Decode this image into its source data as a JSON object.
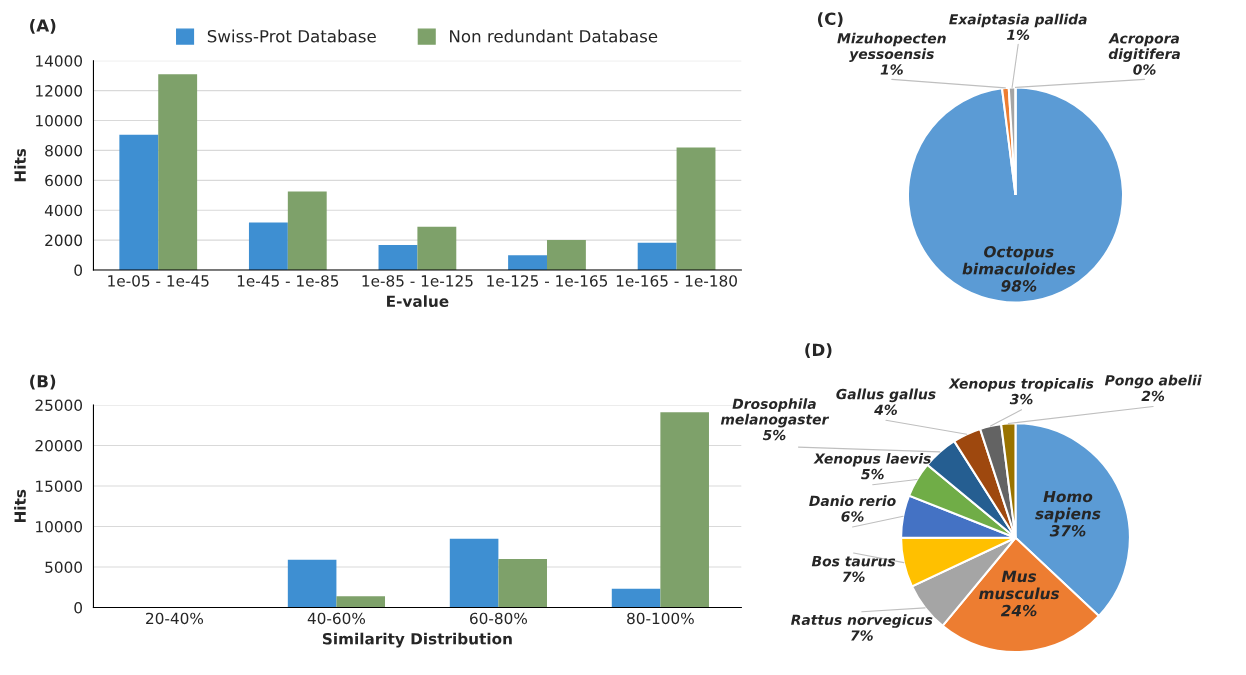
{
  "chart_data": [
    {
      "type": "bar",
      "title": "(A)",
      "xlabel": "E-value",
      "ylabel": "Hits",
      "categories": [
        "1e-05 - 1e-45",
        "1e-45 - 1e-85",
        "1e-85 - 1e-125",
        "1e-125 - 1e-165",
        "1e-165 - 1e-180"
      ],
      "series": [
        {
          "name": "Swiss-Prot Database",
          "color": "#3e8fd2",
          "values": [
            9050,
            3180,
            1680,
            980,
            1830
          ]
        },
        {
          "name": "Non redundant Database",
          "color": "#7ea16a",
          "values": [
            13100,
            5250,
            2900,
            2000,
            8200
          ]
        }
      ],
      "ylim": [
        0,
        14000
      ],
      "yticks": [
        0,
        2000,
        4000,
        6000,
        8000,
        10000,
        12000,
        14000
      ],
      "grid": "y",
      "legend": "top"
    },
    {
      "type": "bar",
      "title": "(B)",
      "xlabel": "Similarity Distribution",
      "ylabel": "Hits",
      "categories": [
        "20-40%",
        "40-60%",
        "60-80%",
        "80-100%"
      ],
      "series": [
        {
          "color": "#3e8fd2",
          "values": [
            0,
            5900,
            8500,
            2300
          ]
        },
        {
          "color": "#7ea16a",
          "values": [
            0,
            1400,
            6000,
            24100
          ]
        }
      ],
      "ylim": [
        0,
        25000
      ],
      "yticks": [
        0,
        5000,
        10000,
        15000,
        20000,
        25000
      ],
      "grid": "y"
    },
    {
      "type": "pie",
      "title": "(C)",
      "categories": [
        "Octopus bimaculoides",
        "Mizuhopecten yessoensis",
        "Exaiptasia pallida",
        "Acropora digitifera"
      ],
      "values": [
        98,
        1,
        1,
        0
      ],
      "value_labels": [
        "98%",
        "1%",
        "1%",
        "0%"
      ],
      "colors": [
        "#5b9bd5",
        "#ed7d31",
        "#a5a5a5",
        "#ffc000"
      ]
    },
    {
      "type": "pie",
      "title": "(D)",
      "categories": [
        "Homo sapiens",
        "Mus musculus",
        "Rattus norvegicus",
        "Bos taurus",
        "Danio rerio",
        "Xenopus laevis",
        "Drosophila melanogaster",
        "Gallus gallus",
        "Xenopus tropicalis",
        "Pongo abelii"
      ],
      "values": [
        37,
        24,
        7,
        7,
        6,
        5,
        5,
        4,
        3,
        2
      ],
      "value_labels": [
        "37%",
        "24%",
        "7%",
        "7%",
        "6%",
        "5%",
        "5%",
        "4%",
        "3%",
        "2%"
      ],
      "colors": [
        "#5b9bd5",
        "#ed7d31",
        "#a5a5a5",
        "#ffc000",
        "#4472c4",
        "#70ad47",
        "#255e91",
        "#9e480e",
        "#636363",
        "#997300"
      ]
    }
  ]
}
